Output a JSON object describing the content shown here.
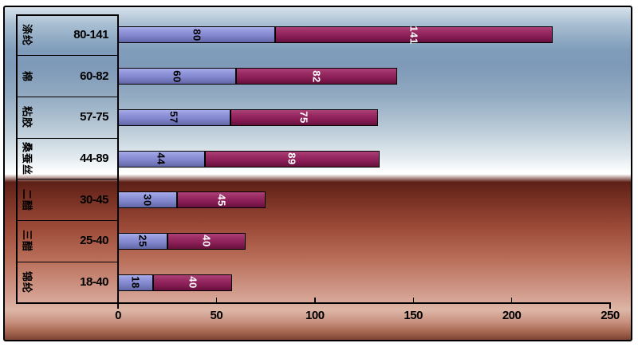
{
  "chart_data": {
    "type": "bar",
    "orientation": "horizontal",
    "stacked": true,
    "title": "",
    "legend": "none",
    "grid": false,
    "categories": [
      "涤纶",
      "棉",
      "粘胶",
      "桑蚕丝",
      "二醋",
      "三醋",
      "锦纶"
    ],
    "category_range_labels": [
      "80-141",
      "60-82",
      "57-75",
      "44-89",
      "30-45",
      "25-40",
      "18-40"
    ],
    "series": [
      {
        "color": "#8287CE",
        "label_text_color": "#000000",
        "values": [
          80,
          60,
          57,
          44,
          30,
          25,
          18
        ]
      },
      {
        "color": "#8A1E56",
        "label_text_color": "#FFFFFF",
        "values": [
          141,
          82,
          75,
          89,
          45,
          40,
          40
        ]
      }
    ],
    "x_axis": {
      "min": 0,
      "max": 250,
      "tick_labels": [
        "0",
        "50",
        "100",
        "150",
        "200",
        "250"
      ]
    },
    "colors": {
      "axis_line": "#000000",
      "bar_border": "#000000",
      "background_top_blue": "#7E9AB8",
      "background_middle": "#FFFFFF",
      "background_horizon_dark": "#5D2017",
      "background_bottom_pink": "#DDB6A7"
    }
  }
}
